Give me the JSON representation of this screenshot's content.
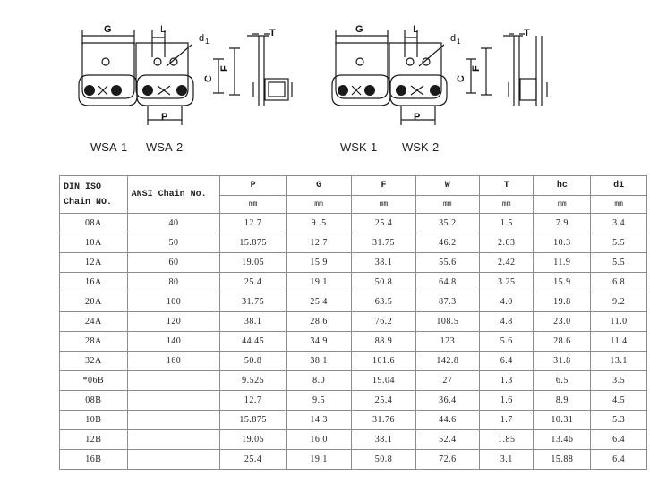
{
  "diagram": {
    "dimension_labels": {
      "G": "G",
      "L": "L",
      "d1": "d",
      "d1_sub": "1",
      "T": "T",
      "C": "C",
      "F": "F",
      "P": "P"
    },
    "captions": {
      "wsa1": "WSA-1",
      "wsa2": "WSA-2",
      "wsk1": "WSK-1",
      "wsk2": "WSK-2"
    }
  },
  "table": {
    "headers": {
      "din_line1": "DIN ISO",
      "din_line2": "Chain NO.",
      "ansi": "ANSI Chain No.",
      "cols": [
        "P",
        "G",
        "F",
        "W",
        "T",
        "hc",
        "d1"
      ]
    },
    "units": [
      "mm",
      "mm",
      "mm",
      "mm",
      "mm",
      "mm",
      "mm"
    ],
    "rows": [
      {
        "din": "08A",
        "ansi": "40",
        "p": "12.7",
        "g": "9 .5",
        "f": "25.4",
        "w": "35.2",
        "t": "1.5",
        "hc": "7.9",
        "d": "3.4"
      },
      {
        "din": "10A",
        "ansi": "50",
        "p": "15.875",
        "g": "12.7",
        "f": "31.75",
        "w": "46.2",
        "t": "2.03",
        "hc": "10.3",
        "d": "5.5"
      },
      {
        "din": "12A",
        "ansi": "60",
        "p": "19.05",
        "g": "15.9",
        "f": "38.1",
        "w": "55.6",
        "t": "2.42",
        "hc": "11.9",
        "d": "5.5"
      },
      {
        "din": "16A",
        "ansi": "80",
        "p": "25.4",
        "g": "19.1",
        "f": "50.8",
        "w": "64.8",
        "t": "3.25",
        "hc": "15.9",
        "d": "6.8"
      },
      {
        "din": "20A",
        "ansi": "100",
        "p": "31.75",
        "g": "25.4",
        "f": "63.5",
        "w": "87.3",
        "t": "4.0",
        "hc": "19.8",
        "d": "9.2"
      },
      {
        "din": "24A",
        "ansi": "120",
        "p": "38.1",
        "g": "28.6",
        "f": "76.2",
        "w": "108.5",
        "t": "4.8",
        "hc": "23.0",
        "d": "11.0"
      },
      {
        "din": "28A",
        "ansi": "140",
        "p": "44.45",
        "g": "34.9",
        "f": "88.9",
        "w": "123",
        "t": "5.6",
        "hc": "28.6",
        "d": "11.4"
      },
      {
        "din": "32A",
        "ansi": "160",
        "p": "50.8",
        "g": "38.1",
        "f": "101.6",
        "w": "142.8",
        "t": "6.4",
        "hc": "31.8",
        "d": "13.1"
      },
      {
        "din": "*06B",
        "ansi": "",
        "p": "9.525",
        "g": "8.0",
        "f": "19.04",
        "w": "27",
        "t": "1.3",
        "hc": "6.5",
        "d": "3.5"
      },
      {
        "din": "08B",
        "ansi": "",
        "p": "12.7",
        "g": "9.5",
        "f": "25.4",
        "w": "36.4",
        "t": "1.6",
        "hc": "8.9",
        "d": "4.5"
      },
      {
        "din": "10B",
        "ansi": "",
        "p": "15.875",
        "g": "14.3",
        "f": "31.76",
        "w": "44.6",
        "t": "1.7",
        "hc": "10.31",
        "d": "5.3"
      },
      {
        "din": "12B",
        "ansi": "",
        "p": "19.05",
        "g": "16.0",
        "f": "38.1",
        "w": "52.4",
        "t": "1.85",
        "hc": "13.46",
        "d": "6.4"
      },
      {
        "din": "16B",
        "ansi": "",
        "p": "25.4",
        "g": "19.1",
        "f": "50.8",
        "w": "72.6",
        "t": "3.1",
        "hc": "15.88",
        "d": "6.4"
      }
    ]
  }
}
